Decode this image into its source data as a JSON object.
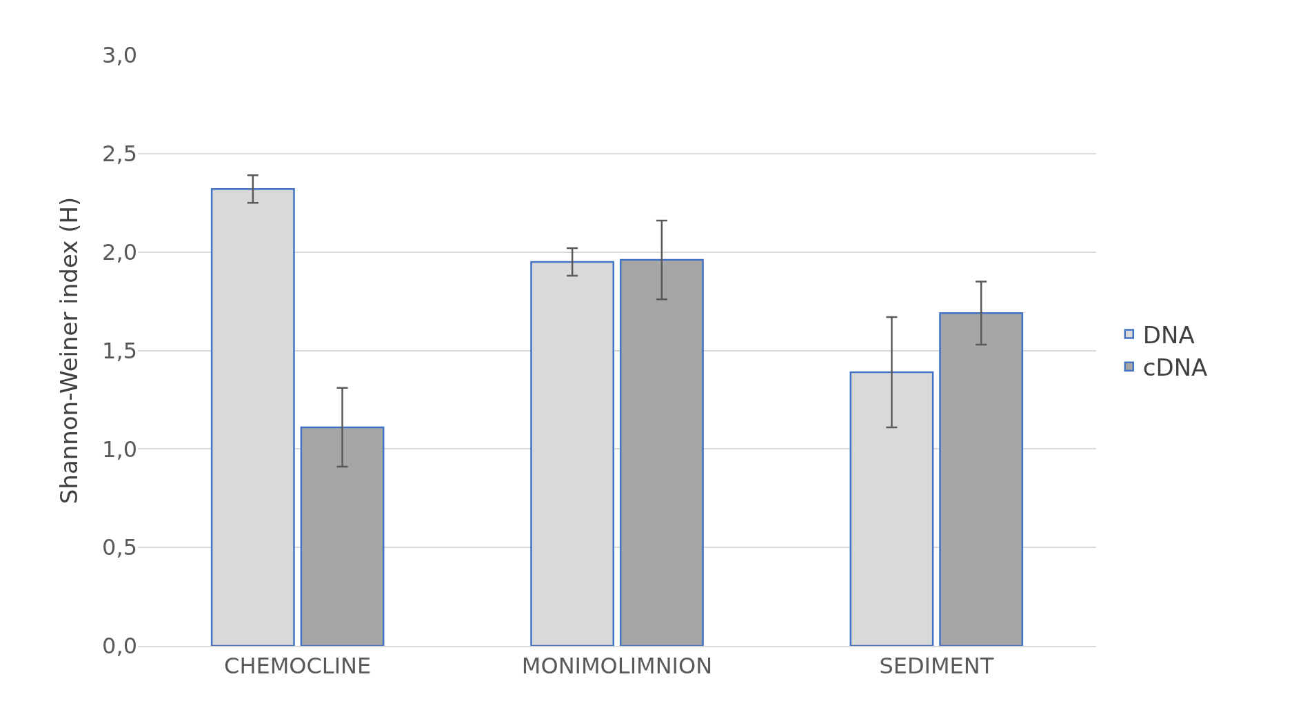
{
  "chart_data": {
    "type": "bar",
    "ylabel": "Shannon-Weiner index (H)",
    "categories": [
      "CHEMOCLINE",
      "MONIMOLIMNION",
      "SEDIMENT"
    ],
    "series": [
      {
        "name": "DNA",
        "color": "#d9d9d9",
        "values": [
          2.32,
          1.95,
          1.39
        ],
        "errors": [
          0.07,
          0.07,
          0.28
        ]
      },
      {
        "name": "cDNA",
        "color": "#a6a6a6",
        "values": [
          1.11,
          1.96,
          1.69
        ],
        "errors": [
          0.2,
          0.2,
          0.16
        ]
      }
    ],
    "ylim": [
      0,
      3
    ],
    "yticks": [
      {
        "value": 0,
        "label": "0,0"
      },
      {
        "value": 0.5,
        "label": "0,5"
      },
      {
        "value": 1,
        "label": "1,0"
      },
      {
        "value": 1.5,
        "label": "1,5"
      },
      {
        "value": 2,
        "label": "2,0"
      },
      {
        "value": 2.5,
        "label": "2,5"
      },
      {
        "value": 3,
        "label": "3,0"
      }
    ],
    "grid": "y",
    "legend": "right"
  }
}
